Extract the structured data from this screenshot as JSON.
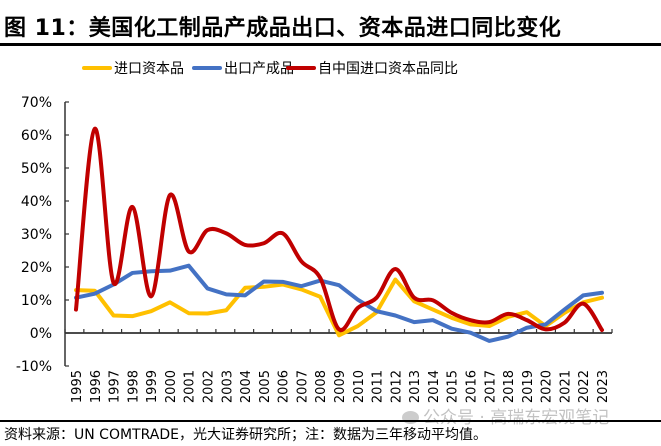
{
  "header": {
    "title": "图 11：美国化工制品产成品出口、资本品进口同比变化"
  },
  "footer": {
    "source": "资料来源：UN COMTRADE，光大证券研究所；注：数据为三年移动平均值。"
  },
  "watermark": {
    "text": "公众号 · 高瑞东宏观笔记",
    "icon": "wechat-icon"
  },
  "chart_data": {
    "type": "line",
    "title": "图 11：美国化工制品产成品出口、资本品进口同比变化",
    "xlabel": "",
    "ylabel": "",
    "ylim": [
      -10,
      70
    ],
    "yticks": [
      -10,
      0,
      10,
      20,
      30,
      40,
      50,
      60,
      70
    ],
    "ytick_labels": [
      "-10%",
      "0%",
      "10%",
      "20%",
      "30%",
      "40%",
      "50%",
      "60%",
      "70%"
    ],
    "grid": false,
    "legend_position": "top-center",
    "x": [
      "1995",
      "1996",
      "1997",
      "1998",
      "1999",
      "2000",
      "2001",
      "2002",
      "2003",
      "2004",
      "2005",
      "2006",
      "2007",
      "2008",
      "2009",
      "2010",
      "2011",
      "2012",
      "2013",
      "2014",
      "2015",
      "2016",
      "2017",
      "2018",
      "2019",
      "2020",
      "2021",
      "2022",
      "2023"
    ],
    "series": [
      {
        "name": "进口资本品",
        "color": "#FFC000",
        "smooth": false,
        "values": [
          13.0,
          12.8,
          5.3,
          5.1,
          6.6,
          9.3,
          6.0,
          5.9,
          6.9,
          13.7,
          14.0,
          14.7,
          13.2,
          11.0,
          -0.7,
          2.1,
          6.3,
          16.2,
          9.6,
          7.1,
          4.6,
          2.6,
          2.1,
          4.9,
          6.3,
          2.1,
          6.1,
          9.3,
          10.7
        ]
      },
      {
        "name": "出口产成品",
        "color": "#4472C4",
        "smooth": false,
        "values": [
          10.7,
          11.9,
          14.7,
          18.2,
          18.7,
          18.9,
          20.4,
          13.5,
          11.7,
          11.4,
          15.6,
          15.5,
          14.2,
          15.9,
          14.5,
          10.1,
          6.6,
          5.3,
          3.3,
          3.9,
          1.3,
          0.1,
          -2.4,
          -1.1,
          1.6,
          2.6,
          7.1,
          11.4,
          12.2
        ]
      },
      {
        "name": "自中国进口资本品同比",
        "color": "#C00000",
        "smooth": true,
        "values": [
          7.1,
          61.9,
          15.2,
          38.2,
          11.1,
          41.8,
          24.7,
          31.2,
          30.2,
          26.7,
          27.2,
          30.2,
          21.7,
          16.7,
          1.1,
          7.6,
          10.7,
          19.4,
          10.7,
          9.9,
          6.1,
          3.9,
          3.3,
          5.8,
          3.9,
          1.1,
          3.1,
          8.9,
          0.9
        ]
      }
    ]
  }
}
